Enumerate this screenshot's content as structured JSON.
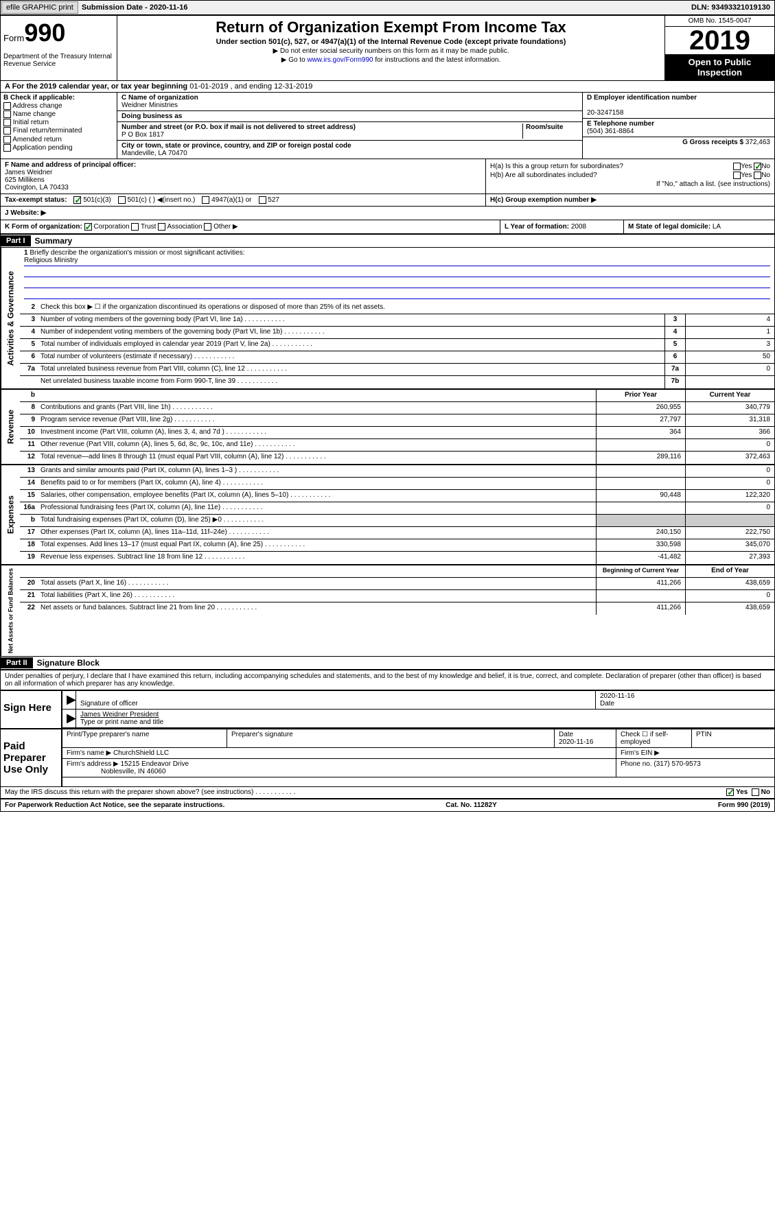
{
  "topbar": {
    "efile": "efile GRAPHIC print",
    "sub_label": "Submission Date - 2020-11-16",
    "dln": "DLN: 93493321019130"
  },
  "header": {
    "form_label": "Form",
    "form_num": "990",
    "dept": "Department of the Treasury Internal Revenue Service",
    "title": "Return of Organization Exempt From Income Tax",
    "subtitle": "Under section 501(c), 527, or 4947(a)(1) of the Internal Revenue Code (except private foundations)",
    "note1": "▶ Do not enter social security numbers on this form as it may be made public.",
    "note2_pre": "▶ Go to ",
    "note2_link": "www.irs.gov/Form990",
    "note2_post": " for instructions and the latest information.",
    "omb": "OMB No. 1545-0047",
    "year": "2019",
    "open": "Open to Public Inspection"
  },
  "period": {
    "text_a": "A For the 2019 calendar year, or tax year beginning ",
    "start": "01-01-2019",
    "text_b": " , and ending ",
    "end": "12-31-2019"
  },
  "B": {
    "label": "B Check if applicable:",
    "items": [
      "Address change",
      "Name change",
      "Initial return",
      "Final return/terminated",
      "Amended return",
      "Application pending"
    ]
  },
  "C": {
    "name_lbl": "C Name of organization",
    "name": "Weidner Ministries",
    "dba_lbl": "Doing business as",
    "addr_lbl": "Number and street (or P.O. box if mail is not delivered to street address)",
    "room_lbl": "Room/suite",
    "addr": "P O Box 1817",
    "city_lbl": "City or town, state or province, country, and ZIP or foreign postal code",
    "city": "Mandeville, LA  70470"
  },
  "D": {
    "lbl": "D Employer identification number",
    "val": "20-3247158"
  },
  "E": {
    "lbl": "E Telephone number",
    "val": "(504) 361-8864"
  },
  "G": {
    "lbl": "G Gross receipts $",
    "val": "372,463"
  },
  "F": {
    "lbl": "F  Name and address of principal officer:",
    "name": "James Weidner",
    "addr1": "625 Millikens",
    "addr2": "Covington, LA  70433"
  },
  "H": {
    "a": "H(a)  Is this a group return for subordinates?",
    "a_yes": "Yes",
    "a_no": "No",
    "b": "H(b)  Are all subordinates included?",
    "b_note": "If \"No,\" attach a list. (see instructions)",
    "c": "H(c)  Group exemption number ▶"
  },
  "I": {
    "lbl": "Tax-exempt status:",
    "opts": [
      "501(c)(3)",
      "501(c) (  ) ◀(insert no.)",
      "4947(a)(1) or",
      "527"
    ]
  },
  "J": {
    "lbl": "J    Website: ▶"
  },
  "K": {
    "lbl": "K Form of organization:",
    "opts": [
      "Corporation",
      "Trust",
      "Association",
      "Other ▶"
    ]
  },
  "L": {
    "lbl": "L Year of formation:",
    "val": "2008"
  },
  "M": {
    "lbl": "M State of legal domicile:",
    "val": "LA"
  },
  "part1": {
    "hdr": "Part I",
    "title": "Summary",
    "l1": "Briefly describe the organization's mission or most significant activities:",
    "mission": "Religious Ministry",
    "l2": "Check this box ▶ ☐ if the organization discontinued its operations or disposed of more than 25% of its net assets.",
    "lines_gov": [
      {
        "n": "3",
        "t": "Number of voting members of the governing body (Part VI, line 1a)",
        "b": "3",
        "v": "4"
      },
      {
        "n": "4",
        "t": "Number of independent voting members of the governing body (Part VI, line 1b)",
        "b": "4",
        "v": "1"
      },
      {
        "n": "5",
        "t": "Total number of individuals employed in calendar year 2019 (Part V, line 2a)",
        "b": "5",
        "v": "3"
      },
      {
        "n": "6",
        "t": "Total number of volunteers (estimate if necessary)",
        "b": "6",
        "v": "50"
      },
      {
        "n": "7a",
        "t": "Total unrelated business revenue from Part VIII, column (C), line 12",
        "b": "7a",
        "v": "0"
      },
      {
        "n": "",
        "t": "Net unrelated business taxable income from Form 990-T, line 39",
        "b": "7b",
        "v": ""
      }
    ],
    "col_prior": "Prior Year",
    "col_curr": "Current Year",
    "col_beg": "Beginning of Current Year",
    "col_end": "End of Year",
    "lines_rev": [
      {
        "n": "8",
        "t": "Contributions and grants (Part VIII, line 1h)",
        "p": "260,955",
        "c": "340,779"
      },
      {
        "n": "9",
        "t": "Program service revenue (Part VIII, line 2g)",
        "p": "27,797",
        "c": "31,318"
      },
      {
        "n": "10",
        "t": "Investment income (Part VIII, column (A), lines 3, 4, and 7d )",
        "p": "364",
        "c": "366"
      },
      {
        "n": "11",
        "t": "Other revenue (Part VIII, column (A), lines 5, 6d, 8c, 9c, 10c, and 11e)",
        "p": "",
        "c": "0"
      },
      {
        "n": "12",
        "t": "Total revenue—add lines 8 through 11 (must equal Part VIII, column (A), line 12)",
        "p": "289,116",
        "c": "372,463"
      }
    ],
    "lines_exp": [
      {
        "n": "13",
        "t": "Grants and similar amounts paid (Part IX, column (A), lines 1–3 )",
        "p": "",
        "c": "0"
      },
      {
        "n": "14",
        "t": "Benefits paid to or for members (Part IX, column (A), line 4)",
        "p": "",
        "c": "0"
      },
      {
        "n": "15",
        "t": "Salaries, other compensation, employee benefits (Part IX, column (A), lines 5–10)",
        "p": "90,448",
        "c": "122,320"
      },
      {
        "n": "16a",
        "t": "Professional fundraising fees (Part IX, column (A), line 11e)",
        "p": "",
        "c": "0"
      },
      {
        "n": "b",
        "t": "Total fundraising expenses (Part IX, column (D), line 25) ▶0",
        "p": "shade",
        "c": "shade"
      },
      {
        "n": "17",
        "t": "Other expenses (Part IX, column (A), lines 11a–11d, 11f–24e)",
        "p": "240,150",
        "c": "222,750"
      },
      {
        "n": "18",
        "t": "Total expenses. Add lines 13–17 (must equal Part IX, column (A), line 25)",
        "p": "330,598",
        "c": "345,070"
      },
      {
        "n": "19",
        "t": "Revenue less expenses. Subtract line 18 from line 12",
        "p": "-41,482",
        "c": "27,393"
      }
    ],
    "lines_net": [
      {
        "n": "20",
        "t": "Total assets (Part X, line 16)",
        "p": "411,266",
        "c": "438,659"
      },
      {
        "n": "21",
        "t": "Total liabilities (Part X, line 26)",
        "p": "",
        "c": "0"
      },
      {
        "n": "22",
        "t": "Net assets or fund balances. Subtract line 21 from line 20",
        "p": "411,266",
        "c": "438,659"
      }
    ],
    "vlabels": {
      "gov": "Activities & Governance",
      "rev": "Revenue",
      "exp": "Expenses",
      "net": "Net Assets or Fund Balances"
    }
  },
  "part2": {
    "hdr": "Part II",
    "title": "Signature Block",
    "perjury": "Under penalties of perjury, I declare that I have examined this return, including accompanying schedules and statements, and to the best of my knowledge and belief, it is true, correct, and complete. Declaration of preparer (other than officer) is based on all information of which preparer has any knowledge.",
    "sign_here": "Sign Here",
    "sig_officer": "Signature of officer",
    "sig_date": "2020-11-16",
    "date_lbl": "Date",
    "name_title": "James Weidner President",
    "name_title_lbl": "Type or print name and title",
    "paid": "Paid Preparer Use Only",
    "prep_name_lbl": "Print/Type preparer's name",
    "prep_sig_lbl": "Preparer's signature",
    "prep_date": "2020-11-16",
    "self_emp": "Check ☐ if self-employed",
    "ptin": "PTIN",
    "firm_name_lbl": "Firm's name  ▶",
    "firm_name": "ChurchShield LLC",
    "firm_ein": "Firm's EIN ▶",
    "firm_addr_lbl": "Firm's address ▶",
    "firm_addr1": "15215 Endeavor Drive",
    "firm_addr2": "Noblesville, IN  46060",
    "phone_lbl": "Phone no.",
    "phone": "(317) 570-9573",
    "discuss": "May the IRS discuss this return with the preparer shown above? (see instructions)",
    "yes": "Yes",
    "no": "No"
  },
  "footer": {
    "pra": "For Paperwork Reduction Act Notice, see the separate instructions.",
    "cat": "Cat. No. 11282Y",
    "form": "Form 990 (2019)"
  }
}
